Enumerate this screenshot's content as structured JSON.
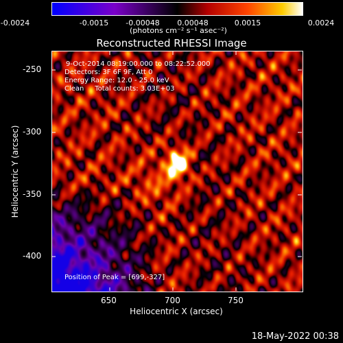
{
  "colorbar": {
    "ticks": [
      "-0.0024",
      "-0.0015",
      "-0.00048",
      "0.00048",
      "0.0015",
      "0.0024"
    ],
    "units": "(photons cm⁻² s⁻¹ asec⁻²)",
    "range": [
      -0.0024,
      0.0024
    ],
    "gradient": [
      "#0000ff",
      "#6600cc",
      "#000000",
      "#cc0000",
      "#ff6600",
      "#ffff00",
      "#ffffff"
    ]
  },
  "plot": {
    "title": "Reconstructed RHESSI Image",
    "info_lines": [
      "9-Oct-2014 08:19:00.000 to 08:22:52.000",
      "Detectors: 3F 6F 9F, Att 0",
      "Energy Range: 12.0 - 25.0 keV",
      "Clean     Total counts: 3.03E+03"
    ],
    "peak_text": "Position of Peak = [699,-327]",
    "footer_date": "18-May-2022 00:38"
  },
  "chart_data": {
    "type": "heatmap",
    "title": "Reconstructed RHESSI Image",
    "xlabel": "Heliocentric X (arcsec)",
    "ylabel": "Heliocentric Y (arcsec)",
    "xlim": [
      605,
      792
    ],
    "ylim": [
      -427,
      -240
    ],
    "xticks": [
      "650",
      "700",
      "750"
    ],
    "yticks": [
      "-250",
      "-300",
      "-350",
      "-400"
    ],
    "peak": [
      699,
      -327
    ]
  }
}
